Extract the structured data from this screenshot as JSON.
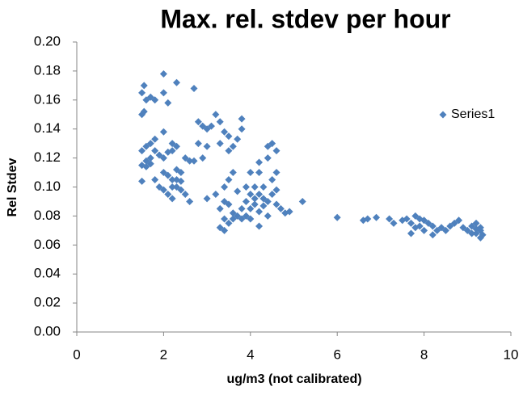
{
  "chart_data": {
    "type": "scatter",
    "title": "Max. rel. stdev per hour",
    "x_label": "ug/m3 (not calibrated)",
    "y_label": "Rel Stdev",
    "x": [
      1.5,
      1.55,
      1.6,
      1.5,
      1.55,
      1.7,
      1.8,
      2.0,
      2.0,
      2.3,
      2.1,
      2.7,
      1.5,
      1.6,
      1.7,
      1.8,
      1.6,
      1.7,
      1.8,
      1.9,
      2.0,
      2.1,
      2.2,
      2.0,
      2.2,
      2.3,
      1.5,
      1.6,
      1.7,
      1.5,
      1.8,
      1.9,
      2.0,
      2.1,
      2.2,
      2.3,
      2.4,
      2.1,
      2.2,
      2.3,
      2.4,
      2.5,
      2.6,
      2.0,
      2.2,
      2.4,
      2.6,
      2.7,
      2.5,
      2.3,
      2.8,
      2.9,
      3.0,
      3.2,
      3.3,
      3.4,
      3.5,
      2.8,
      3.0,
      2.9,
      3.3,
      3.5,
      3.8,
      3.8,
      3.7,
      3.6,
      3.1,
      3.0,
      3.2,
      3.4,
      3.5,
      3.6,
      3.4,
      3.3,
      3.5,
      3.6,
      3.4,
      3.5,
      3.3,
      3.4,
      3.6,
      3.7,
      3.8,
      3.9,
      4.0,
      4.1,
      4.2,
      4.3,
      4.4,
      4.0,
      4.1,
      4.2,
      4.3,
      4.5,
      4.6,
      4.7,
      4.8,
      4.2,
      4.0,
      3.9,
      3.8,
      4.2,
      4.3,
      4.4,
      4.5,
      4.6,
      4.4,
      4.0,
      4.2,
      4.5,
      4.6,
      3.7,
      3.9,
      4.1,
      4.4,
      4.6,
      5.2,
      4.9,
      6.0,
      6.6,
      6.7,
      6.9,
      7.2,
      7.3,
      7.5,
      7.6,
      7.7,
      7.8,
      7.9,
      7.7,
      7.8,
      8.0,
      8.1,
      8.2,
      8.3,
      8.2,
      8.4,
      8.5,
      8.6,
      8.7,
      8.8,
      8.9,
      9.0,
      9.1,
      9.2,
      9.3,
      9.2,
      9.3,
      9.35,
      9.3,
      9.1,
      9.2,
      8.0,
      7.9
    ],
    "series": [
      {
        "name": "Series1",
        "color": "#4f81bd",
        "values": [
          0.165,
          0.17,
          0.16,
          0.15,
          0.152,
          0.162,
          0.16,
          0.178,
          0.165,
          0.172,
          0.158,
          0.168,
          0.125,
          0.128,
          0.13,
          0.133,
          0.118,
          0.12,
          0.125,
          0.122,
          0.12,
          0.124,
          0.125,
          0.138,
          0.13,
          0.128,
          0.115,
          0.114,
          0.116,
          0.104,
          0.105,
          0.1,
          0.11,
          0.108,
          0.105,
          0.112,
          0.11,
          0.095,
          0.092,
          0.1,
          0.098,
          0.095,
          0.09,
          0.098,
          0.1,
          0.104,
          0.118,
          0.118,
          0.12,
          0.105,
          0.145,
          0.142,
          0.14,
          0.15,
          0.145,
          0.138,
          0.135,
          0.13,
          0.128,
          0.12,
          0.13,
          0.125,
          0.14,
          0.147,
          0.133,
          0.128,
          0.142,
          0.092,
          0.095,
          0.1,
          0.105,
          0.11,
          0.09,
          0.085,
          0.088,
          0.082,
          0.078,
          0.075,
          0.072,
          0.07,
          0.078,
          0.08,
          0.085,
          0.09,
          0.095,
          0.1,
          0.095,
          0.092,
          0.09,
          0.085,
          0.088,
          0.083,
          0.087,
          0.095,
          0.098,
          0.085,
          0.082,
          0.073,
          0.078,
          0.08,
          0.078,
          0.11,
          0.1,
          0.128,
          0.13,
          0.125,
          0.12,
          0.11,
          0.117,
          0.105,
          0.11,
          0.097,
          0.1,
          0.092,
          0.08,
          0.088,
          0.09,
          0.083,
          0.079,
          0.077,
          0.078,
          0.079,
          0.078,
          0.075,
          0.077,
          0.078,
          0.075,
          0.08,
          0.078,
          0.068,
          0.072,
          0.077,
          0.075,
          0.073,
          0.07,
          0.067,
          0.072,
          0.07,
          0.073,
          0.075,
          0.077,
          0.072,
          0.07,
          0.073,
          0.075,
          0.072,
          0.068,
          0.065,
          0.067,
          0.07,
          0.068,
          0.071,
          0.07,
          0.073
        ]
      }
    ],
    "xlim": [
      0,
      10
    ],
    "xticks": [
      0,
      2,
      4,
      6,
      8,
      10
    ],
    "ylim": [
      0,
      0.2
    ],
    "yticks": [
      {
        "value": 0,
        "label": "0.00"
      },
      {
        "value": 0.02,
        "label": "0.02"
      },
      {
        "value": 0.04,
        "label": "0.04"
      },
      {
        "value": 0.06,
        "label": "0.06"
      },
      {
        "value": 0.08,
        "label": "0.08"
      },
      {
        "value": 0.1,
        "label": "0.10"
      },
      {
        "value": 0.12,
        "label": "0.12"
      },
      {
        "value": 0.14,
        "label": "0.14"
      },
      {
        "value": 0.16,
        "label": "0.16"
      },
      {
        "value": 0.18,
        "label": "0.18"
      },
      {
        "value": 0.2,
        "label": "0.20"
      }
    ],
    "grid": false,
    "legend": "right"
  }
}
